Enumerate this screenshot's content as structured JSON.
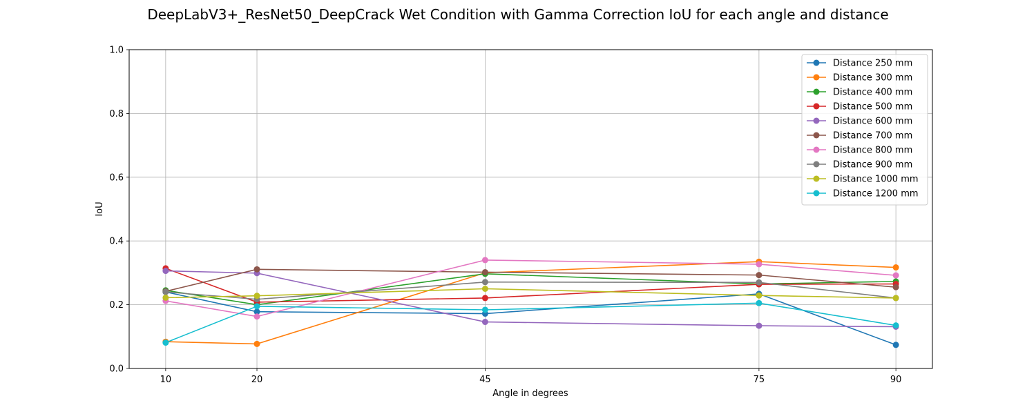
{
  "chart_data": {
    "type": "line",
    "title": "DeepLabV3+_ResNet50_DeepCrack Wet Condition with Gamma Correction IoU for each angle and distance",
    "xlabel": "Angle in degrees",
    "ylabel": "IoU",
    "x": [
      10,
      20,
      45,
      75,
      90
    ],
    "x_tick_labels": [
      "10",
      "20",
      "45",
      "75",
      "90"
    ],
    "xlim": [
      6,
      94
    ],
    "ylim": [
      0.0,
      1.0
    ],
    "y_ticks": [
      0.0,
      0.2,
      0.4,
      0.6,
      0.8,
      1.0
    ],
    "y_tick_labels": [
      "0.0",
      "0.2",
      "0.4",
      "0.6",
      "0.8",
      "1.0"
    ],
    "grid": true,
    "legend_position": "top-right",
    "series": [
      {
        "name": "Distance 250 mm",
        "color": "#1f77b4",
        "values": [
          0.24,
          0.178,
          0.172,
          0.234,
          0.074
        ]
      },
      {
        "name": "Distance 300 mm",
        "color": "#ff7f0e",
        "values": [
          0.084,
          0.077,
          0.3,
          0.335,
          0.317
        ]
      },
      {
        "name": "Distance 400 mm",
        "color": "#2ca02c",
        "values": [
          0.245,
          0.2,
          0.297,
          0.265,
          0.273
        ]
      },
      {
        "name": "Distance 500 mm",
        "color": "#d62728",
        "values": [
          0.314,
          0.208,
          0.221,
          0.264,
          0.265
        ]
      },
      {
        "name": "Distance 600 mm",
        "color": "#9467bd",
        "values": [
          0.306,
          0.299,
          0.146,
          0.134,
          0.131
        ]
      },
      {
        "name": "Distance 700 mm",
        "color": "#8c564b",
        "values": [
          0.242,
          0.311,
          0.302,
          0.293,
          0.255
        ]
      },
      {
        "name": "Distance 800 mm",
        "color": "#e377c2",
        "values": [
          0.212,
          0.163,
          0.34,
          0.327,
          0.292
        ]
      },
      {
        "name": "Distance 900 mm",
        "color": "#7f7f7f",
        "values": [
          0.24,
          0.217,
          0.271,
          0.27,
          0.221
        ]
      },
      {
        "name": "Distance 1000 mm",
        "color": "#bcbd22",
        "values": [
          0.222,
          0.228,
          0.25,
          0.229,
          0.221
        ]
      },
      {
        "name": "Distance 1200 mm",
        "color": "#17becf",
        "values": [
          0.081,
          0.195,
          0.184,
          0.205,
          0.135
        ]
      }
    ]
  }
}
